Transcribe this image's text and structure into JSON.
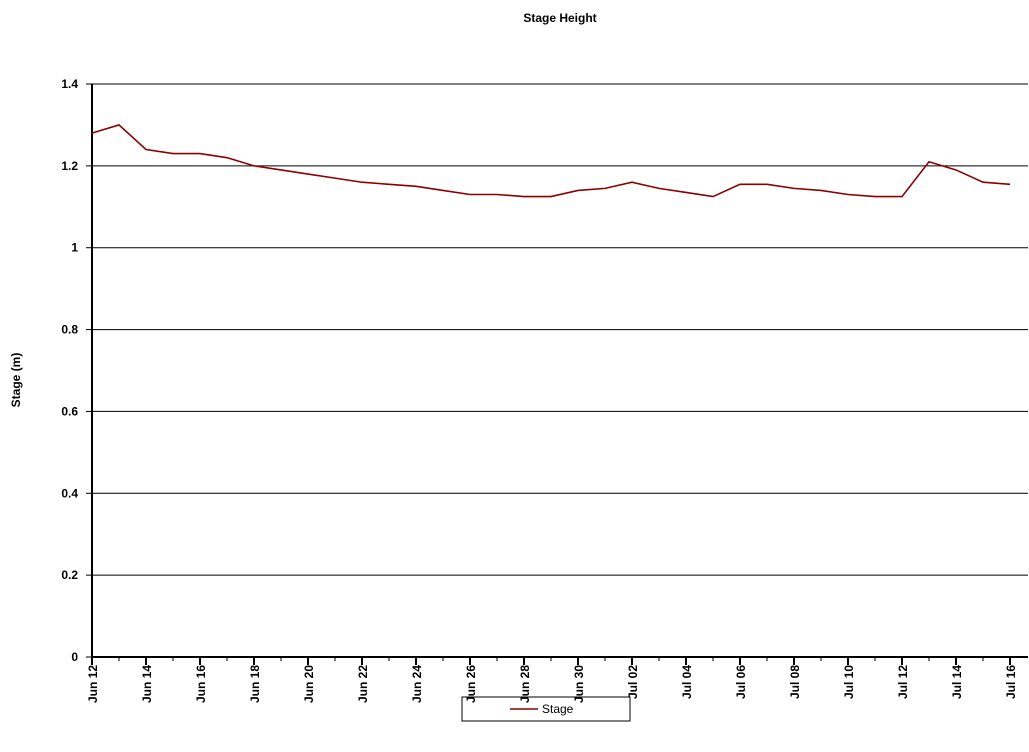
{
  "chart_data": {
    "type": "line",
    "title": "Stage Height",
    "ylabel": "Stage (m)",
    "categories": [
      "Jun 12",
      "Jun 13",
      "Jun 14",
      "Jun 15",
      "Jun 16",
      "Jun 17",
      "Jun 18",
      "Jun 19",
      "Jun 20",
      "Jun 21",
      "Jun 22",
      "Jun 23",
      "Jun 24",
      "Jun 25",
      "Jun 26",
      "Jun 27",
      "Jun 28",
      "Jun 29",
      "Jun 30",
      "Jul 01",
      "Jul 02",
      "Jul 03",
      "Jul 04",
      "Jul 05",
      "Jul 06",
      "Jul 07",
      "Jul 08",
      "Jul 09",
      "Jul 10",
      "Jul 11",
      "Jul 12",
      "Jul 13",
      "Jul 14",
      "Jul 15",
      "Jul 16"
    ],
    "series": [
      {
        "name": "Stage",
        "color": "#8b0000",
        "values": [
          1.28,
          1.3,
          1.24,
          1.23,
          1.23,
          1.22,
          1.2,
          1.19,
          1.18,
          1.17,
          1.16,
          1.155,
          1.15,
          1.14,
          1.13,
          1.13,
          1.125,
          1.125,
          1.14,
          1.145,
          1.16,
          1.145,
          1.135,
          1.125,
          1.155,
          1.155,
          1.145,
          1.14,
          1.13,
          1.125,
          1.125,
          1.21,
          1.19,
          1.16,
          1.155
        ]
      }
    ],
    "xticks": [
      "Jun 12",
      "Jun 14",
      "Jun 16",
      "Jun 18",
      "Jun 20",
      "Jun 22",
      "Jun 24",
      "Jun 26",
      "Jun 28",
      "Jun 30",
      "Jul 02",
      "Jul 04",
      "Jul 06",
      "Jul 08",
      "Jul 10",
      "Jul 12",
      "Jul 14",
      "Jul 16"
    ],
    "ylim": [
      0,
      1.4
    ],
    "yticks": [
      0,
      0.2,
      0.4,
      0.6,
      0.8,
      1,
      1.2,
      1.4
    ],
    "grid": true
  }
}
